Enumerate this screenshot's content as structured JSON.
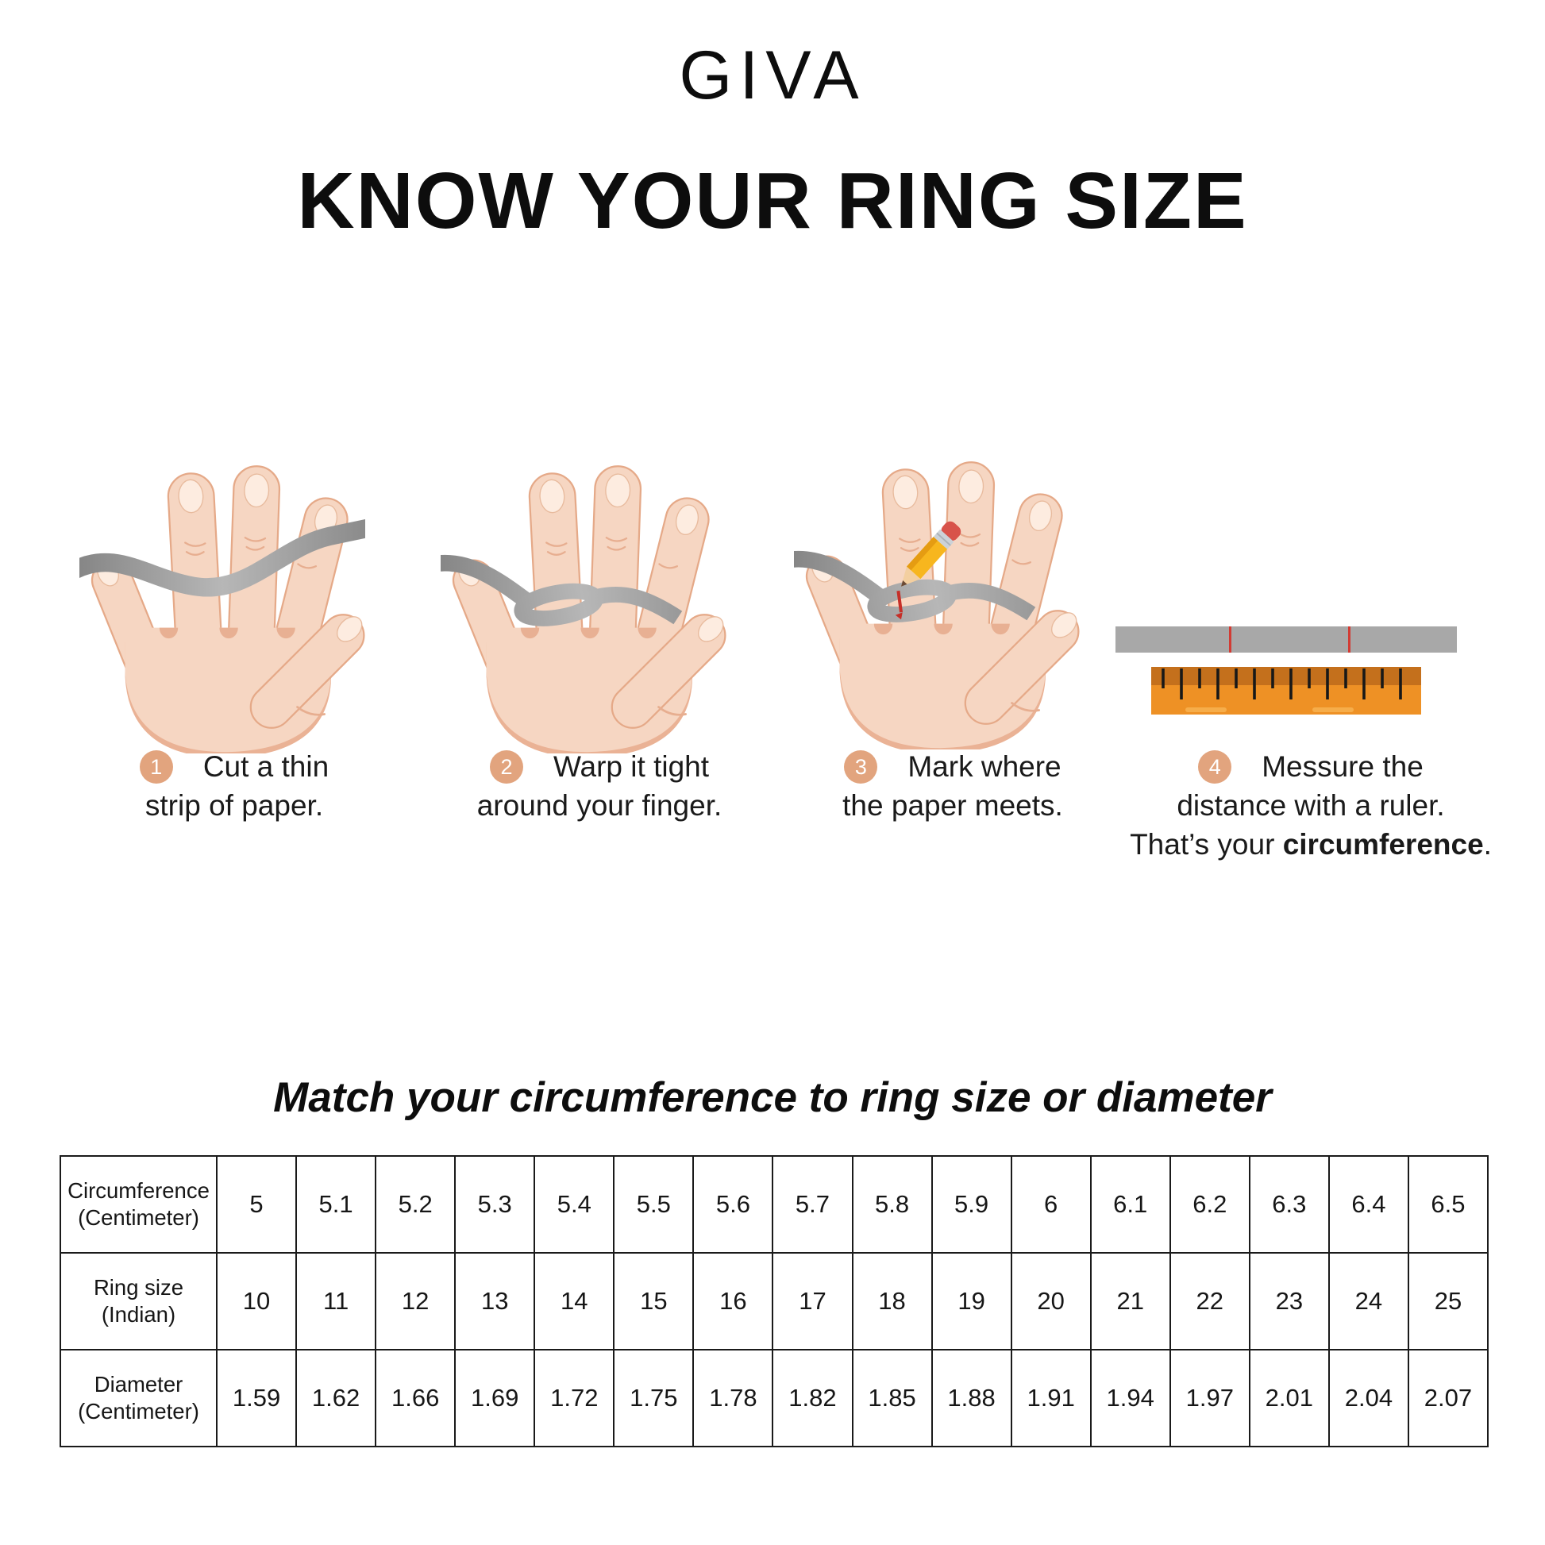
{
  "brand": "GIVA",
  "title": "KNOW YOUR RING SIZE",
  "steps": [
    {
      "number": "1",
      "line1": "Cut a thin",
      "line2": "strip of paper."
    },
    {
      "number": "2",
      "line1": "Warp it tight",
      "line2": "around your finger."
    },
    {
      "number": "3",
      "line1": "Mark where",
      "line2": "the paper meets."
    },
    {
      "number": "4",
      "line1": "Messure the",
      "line2": "distance with a ruler.",
      "line3_prefix": "That’s your ",
      "line3_bold": "circumference",
      "line3_suffix": "."
    }
  ],
  "icons": {
    "step1": "hand-with-paper-strip",
    "step2": "hand-with-paper-wrapped-finger",
    "step3": "hand-with-pencil-mark",
    "step4": "paper-strip-and-ruler"
  },
  "table": {
    "heading": "Match your circumference to ring size or diameter",
    "rows": [
      {
        "label": [
          "Circumference",
          "(Centimeter)"
        ],
        "values": [
          "5",
          "5.1",
          "5.2",
          "5.3",
          "5.4",
          "5.5",
          "5.6",
          "5.7",
          "5.8",
          "5.9",
          "6",
          "6.1",
          "6.2",
          "6.3",
          "6.4",
          "6.5"
        ]
      },
      {
        "label": [
          "Ring size",
          "(Indian)"
        ],
        "values": [
          "10",
          "11",
          "12",
          "13",
          "14",
          "15",
          "16",
          "17",
          "18",
          "19",
          "20",
          "21",
          "22",
          "23",
          "24",
          "25"
        ]
      },
      {
        "label": [
          "Diameter",
          "(Centimeter)"
        ],
        "values": [
          "1.59",
          "1.62",
          "1.66",
          "1.69",
          "1.72",
          "1.75",
          "1.78",
          "1.82",
          "1.85",
          "1.88",
          "1.91",
          "1.94",
          "1.97",
          "2.01",
          "2.04",
          "2.07"
        ]
      }
    ]
  },
  "colors": {
    "badge": "#e2a47e",
    "skin": "#f6d6c2",
    "skin_outline": "#e5a988",
    "paper_strip_gray": "#9b9b9b",
    "ruler_orange": "#ee9125",
    "ruler_band": "#c4701c",
    "mark_red": "#d02f2a",
    "pencil_yellow": "#f7b61e",
    "eraser_red": "#d8534a",
    "text": "#1a1a1a"
  }
}
